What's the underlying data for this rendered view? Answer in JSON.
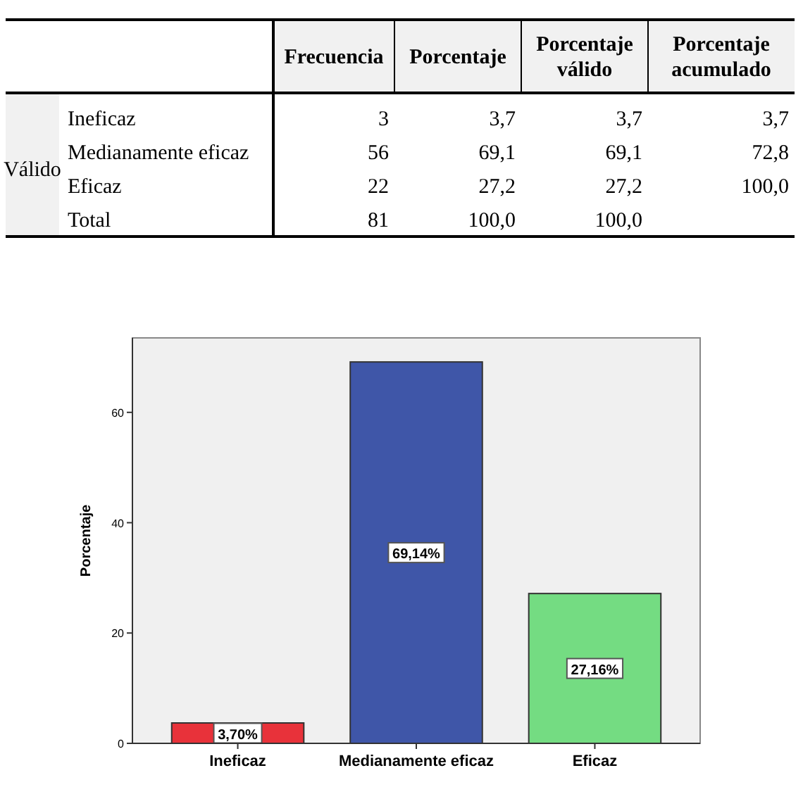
{
  "chart_data": [
    {
      "type": "other",
      "ylabel": "Válido",
      "categories": [
        "Ineficaz",
        "Medianamente eficaz",
        "Eficaz",
        "Total"
      ],
      "series": [
        {
          "name": "Frecuencia",
          "values": [
            3,
            56,
            22,
            81
          ],
          "value_labels": [
            "3",
            "56",
            "22",
            "81"
          ]
        },
        {
          "name": "Porcentaje",
          "values": [
            3.7,
            69.1,
            27.2,
            100.0
          ],
          "value_labels": [
            "3,7",
            "69,1",
            "27,2",
            "100,0"
          ]
        },
        {
          "name": "Porcentaje válido",
          "values": [
            3.7,
            69.1,
            27.2,
            100.0
          ],
          "value_labels": [
            "3,7",
            "69,1",
            "27,2",
            "100,0"
          ]
        },
        {
          "name": "Porcentaje acumulado",
          "values": [
            3.7,
            72.8,
            100.0,
            null
          ],
          "value_labels": [
            "3,7",
            "72,8",
            "100,0",
            null
          ]
        }
      ]
    },
    {
      "type": "bar",
      "ylabel": "Porcentaje",
      "categories": [
        "Ineficaz",
        "Medianamente eficaz",
        "Eficaz"
      ],
      "values": [
        3.7,
        69.14,
        27.16
      ],
      "colors": [
        "#e8323a",
        "#3f56a8",
        "#74dc82"
      ],
      "value_labels": [
        "3,70%",
        "69,14%",
        "27,16%"
      ],
      "ylim": [
        0,
        73.5
      ],
      "yticks": [
        0,
        20,
        40,
        60
      ]
    }
  ]
}
